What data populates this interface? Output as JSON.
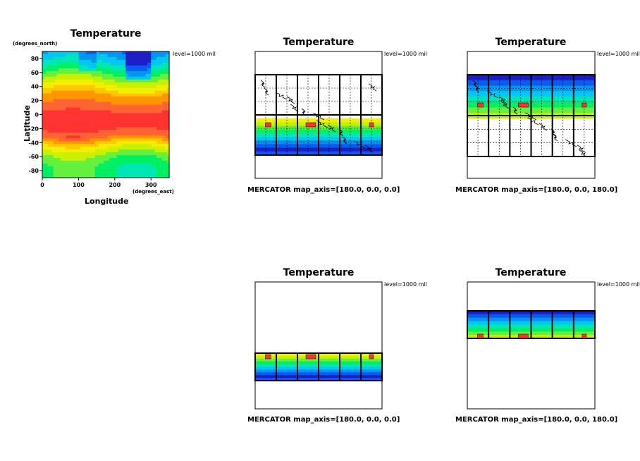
{
  "palette": [
    "#1e1ec8",
    "#0a5af0",
    "#0096f0",
    "#00c8f0",
    "#00e6b4",
    "#00f064",
    "#64f03c",
    "#c8f000",
    "#f0f000",
    "#ffc800",
    "#ff9600",
    "#ff6432",
    "#ff3232",
    "#ff6496",
    "#c832c8"
  ],
  "chart_data": [
    {
      "type": "heatmap",
      "title": "Temperature",
      "xlabel": "Longitude",
      "ylabel": "Latitude",
      "x_units": "(degrees_east)",
      "y_units": "(degrees_north)",
      "level_label": "level=1000 mil",
      "xlim": [
        0,
        350
      ],
      "ylim": [
        -90,
        90
      ],
      "x_ticks": [
        "0",
        "100",
        "200",
        "300"
      ],
      "y_ticks": [
        "80",
        "60",
        "40",
        "20",
        "0",
        "-20",
        "-40",
        "-60",
        "-80"
      ],
      "latitude_band_levels": [
        {
          "lat": 80,
          "level": 3
        },
        {
          "lat": 70,
          "level": 4
        },
        {
          "lat": 55,
          "level": 6
        },
        {
          "lat": 40,
          "level": 8
        },
        {
          "lat": 25,
          "level": 10
        },
        {
          "lat": 10,
          "level": 11
        },
        {
          "lat": 0,
          "level": 12
        },
        {
          "lat": -15,
          "level": 12
        },
        {
          "lat": -30,
          "level": 11
        },
        {
          "lat": -45,
          "level": 8
        },
        {
          "lat": -60,
          "level": 6
        },
        {
          "lat": -75,
          "level": 5
        },
        {
          "lat": -88,
          "level": 5
        }
      ]
    },
    {
      "type": "heatmap",
      "title": "Temperature",
      "level_label": "level=1000 mil",
      "projection": "MERCATOR",
      "caption": "MERCATOR   map_axis=[180.0, 0.0, 0.0]"
    },
    {
      "type": "heatmap",
      "title": "Temperature",
      "level_label": "level=1000 mil",
      "projection": "MERCATOR",
      "caption": "MERCATOR   map_axis=[180.0, 0.0, 180.0]"
    },
    {
      "type": "heatmap",
      "title": "Temperature",
      "level_label": "level=1000 mil",
      "projection": "MERCATOR",
      "caption": "MERCATOR   map_axis=[180.0, 0.0, 0.0]"
    },
    {
      "type": "heatmap",
      "title": "Temperature",
      "level_label": "level=1000 mil",
      "projection": "MERCATOR",
      "caption": "MERCATOR   map_axis=[180.0, 0.0, 180.0]"
    }
  ]
}
